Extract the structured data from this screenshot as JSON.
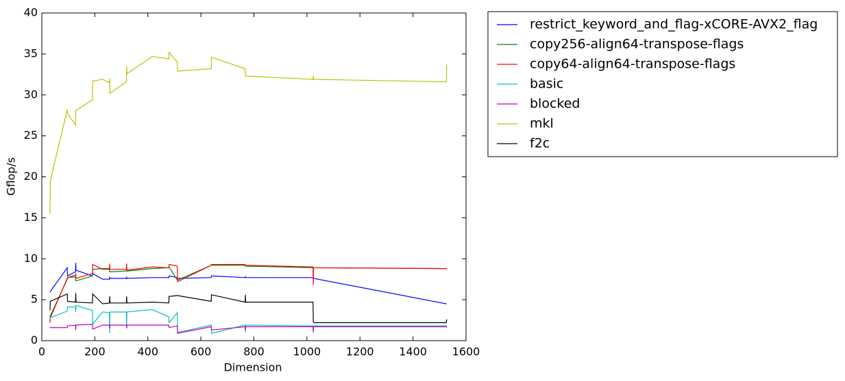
{
  "chart_data": {
    "type": "line",
    "xlabel": "Dimension",
    "ylabel": "Gflop/s",
    "x": [
      31,
      32,
      96,
      97,
      127,
      128,
      129,
      191,
      192,
      229,
      255,
      256,
      257,
      319,
      320,
      321,
      417,
      479,
      480,
      511,
      512,
      639,
      640,
      767,
      768,
      769,
      1023,
      1024,
      1025,
      1525,
      1526,
      1527
    ],
    "xlim": [
      0,
      1600
    ],
    "xticks": [
      0,
      200,
      400,
      600,
      800,
      1000,
      1200,
      1400,
      1600
    ],
    "ylim": [
      0,
      40
    ],
    "yticks": [
      0,
      5,
      10,
      15,
      20,
      25,
      30,
      35,
      40
    ],
    "legend": "outside",
    "series": [
      {
        "name": "restrict_keyword_and_flag-xCORE-AVX2_flag",
        "color": "#0000ff",
        "values": [
          5.9,
          6.0,
          8.9,
          7.9,
          8.4,
          9.5,
          8.6,
          7.9,
          8.2,
          7.5,
          7.5,
          7.8,
          7.6,
          7.6,
          7.8,
          7.6,
          7.7,
          7.7,
          7.9,
          7.7,
          7.6,
          7.7,
          7.9,
          7.7,
          7.8,
          7.7,
          7.7,
          7.7,
          7.6,
          4.5,
          4.5,
          4.5
        ]
      },
      {
        "name": "copy256-align64-transpose-flags",
        "color": "#008000",
        "values": [
          2.3,
          3.0,
          7.5,
          7.7,
          7.8,
          7.3,
          7.3,
          7.9,
          8.7,
          8.8,
          8.8,
          8.4,
          8.4,
          8.5,
          8.5,
          8.5,
          8.8,
          8.9,
          9.0,
          7.4,
          7.4,
          9.2,
          9.2,
          9.2,
          9.1,
          9.1,
          8.9,
          8.9,
          8.9,
          8.8,
          8.8,
          8.7
        ]
      },
      {
        "name": "copy64-align64-transpose-flags",
        "color": "#ff0000",
        "values": [
          2.2,
          2.8,
          7.6,
          7.7,
          8.0,
          8.2,
          7.6,
          8.2,
          9.3,
          8.7,
          8.7,
          9.4,
          8.7,
          8.7,
          9.4,
          8.6,
          9.0,
          8.9,
          9.3,
          9.1,
          7.2,
          9.2,
          9.3,
          9.3,
          9.2,
          9.2,
          9.0,
          6.8,
          8.9,
          8.8,
          8.8,
          8.7
        ]
      },
      {
        "name": "basic",
        "color": "#00bfbf",
        "values": [
          2.6,
          2.8,
          3.6,
          4.1,
          4.1,
          3.5,
          4.3,
          3.7,
          2.0,
          3.5,
          3.4,
          0.9,
          3.5,
          3.5,
          1.6,
          3.5,
          3.8,
          2.9,
          2.2,
          3.4,
          1.0,
          1.9,
          0.9,
          1.9,
          1.0,
          1.9,
          1.8,
          1.8,
          1.8,
          1.8,
          1.8,
          1.8
        ]
      },
      {
        "name": "blocked",
        "color": "#bf00bf",
        "values": [
          1.7,
          1.6,
          1.6,
          1.8,
          1.9,
          1.3,
          1.9,
          2.0,
          1.4,
          1.9,
          1.9,
          1.5,
          1.9,
          1.9,
          1.5,
          1.9,
          1.9,
          1.9,
          1.6,
          1.8,
          0.9,
          1.7,
          1.3,
          1.7,
          1.2,
          1.7,
          1.7,
          1.0,
          1.7,
          1.7,
          1.7,
          1.6
        ]
      },
      {
        "name": "mkl",
        "color": "#bfbf00",
        "values": [
          15.5,
          19.5,
          28.2,
          27.8,
          26.3,
          28.1,
          28.1,
          29.4,
          31.7,
          31.9,
          31.5,
          32.0,
          30.2,
          31.6,
          33.5,
          32.6,
          34.7,
          34.4,
          35.2,
          34.0,
          32.9,
          33.2,
          34.6,
          33.2,
          32.3,
          32.3,
          31.9,
          32.3,
          31.9,
          31.6,
          31.6,
          33.7
        ]
      },
      {
        "name": "f2c",
        "color": "#000000",
        "values": [
          3.7,
          4.8,
          5.7,
          4.8,
          4.7,
          5.8,
          4.7,
          4.6,
          5.7,
          4.5,
          4.6,
          5.4,
          4.6,
          4.6,
          5.4,
          4.6,
          4.7,
          4.6,
          5.4,
          5.5,
          5.5,
          4.8,
          5.6,
          4.7,
          5.6,
          4.7,
          4.7,
          2.3,
          2.2,
          2.2,
          2.2,
          2.6
        ]
      }
    ]
  }
}
